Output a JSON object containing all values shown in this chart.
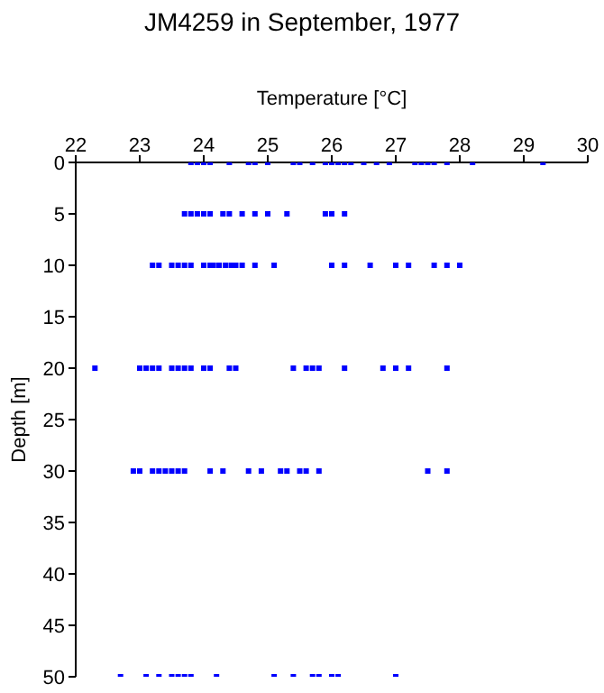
{
  "chart_data": {
    "type": "scatter",
    "title": "JM4259 in September, 1977",
    "xlabel": "Temperature [°C]",
    "ylabel": "Depth [m]",
    "x": [
      23.8,
      23.9,
      24.0,
      24.1,
      24.4,
      24.7,
      24.8,
      25.0,
      25.4,
      25.5,
      25.7,
      25.9,
      26.0,
      26.1,
      26.2,
      26.3,
      26.5,
      26.7,
      26.9,
      27.3,
      27.4,
      27.5,
      27.6,
      27.8,
      28.2,
      29.3,
      23.7,
      23.8,
      23.9,
      24.0,
      24.1,
      24.3,
      24.4,
      24.6,
      24.8,
      25.0,
      25.3,
      25.9,
      26.0,
      26.2,
      23.2,
      23.3,
      23.5,
      23.6,
      23.7,
      23.8,
      24.0,
      24.1,
      24.15,
      24.24,
      24.34,
      24.43,
      24.5,
      24.6,
      24.8,
      25.1,
      26.0,
      26.2,
      26.6,
      27.0,
      27.2,
      27.6,
      27.8,
      28.0,
      22.3,
      23.0,
      23.1,
      23.2,
      23.3,
      23.5,
      23.6,
      23.7,
      23.8,
      24.0,
      24.1,
      24.4,
      24.5,
      25.4,
      25.6,
      25.7,
      25.8,
      26.2,
      26.8,
      27.0,
      27.2,
      27.8,
      22.9,
      23.0,
      23.2,
      23.3,
      23.4,
      23.5,
      23.6,
      23.7,
      24.1,
      24.3,
      24.7,
      24.9,
      25.2,
      25.3,
      25.5,
      25.6,
      25.8,
      27.5,
      27.8,
      22.7,
      23.1,
      23.3,
      23.5,
      23.6,
      23.7,
      23.8,
      24.2,
      25.1,
      25.4,
      25.7,
      25.8,
      26.0,
      26.1,
      27.0
    ],
    "series": [
      {
        "color": "#0000ff",
        "values": [
          0,
          0,
          0,
          0,
          0,
          0,
          0,
          0,
          0,
          0,
          0,
          0,
          0,
          0,
          0,
          0,
          0,
          0,
          0,
          0,
          0,
          0,
          0,
          0,
          0,
          0,
          5,
          5,
          5,
          5,
          5,
          5,
          5,
          5,
          5,
          5,
          5,
          5,
          5,
          5,
          10,
          10,
          10,
          10,
          10,
          10,
          10,
          10,
          10,
          10,
          10,
          10,
          10,
          10,
          10,
          10,
          10,
          10,
          10,
          10,
          10,
          10,
          10,
          10,
          20,
          20,
          20,
          20,
          20,
          20,
          20,
          20,
          20,
          20,
          20,
          20,
          20,
          20,
          20,
          20,
          20,
          20,
          20,
          20,
          20,
          20,
          30,
          30,
          30,
          30,
          30,
          30,
          30,
          30,
          30,
          30,
          30,
          30,
          30,
          30,
          30,
          30,
          30,
          30,
          30,
          50,
          50,
          50,
          50,
          50,
          50,
          50,
          50,
          50,
          50,
          50,
          50,
          50,
          50,
          50
        ]
      }
    ],
    "xlim": [
      22,
      30
    ],
    "xticks": [
      22,
      23,
      24,
      25,
      26,
      27,
      28,
      29,
      30
    ],
    "ylim": [
      50,
      0
    ],
    "yticks": [
      0,
      5,
      10,
      15,
      20,
      25,
      30,
      35,
      40,
      45,
      50
    ],
    "grid": false,
    "legend": false,
    "marker": "square"
  }
}
